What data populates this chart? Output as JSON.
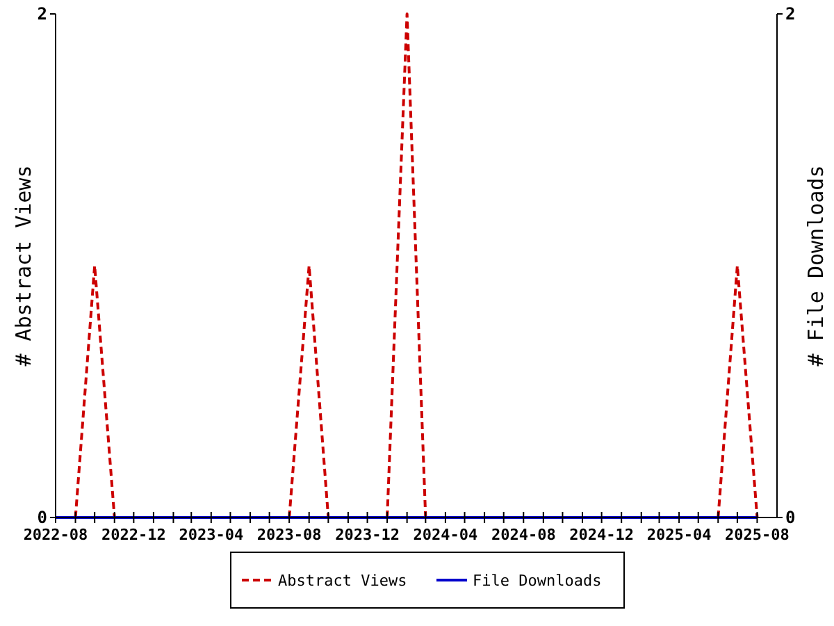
{
  "chart_data": {
    "type": "line",
    "ylabel": "# Abstract Views",
    "y2label": "# File Downloads",
    "x": [
      "2022-08",
      "2022-09",
      "2022-10",
      "2022-11",
      "2022-12",
      "2023-01",
      "2023-02",
      "2023-03",
      "2023-04",
      "2023-05",
      "2023-06",
      "2023-07",
      "2023-08",
      "2023-09",
      "2023-10",
      "2023-11",
      "2023-12",
      "2024-01",
      "2024-02",
      "2024-03",
      "2024-04",
      "2024-05",
      "2024-06",
      "2024-07",
      "2024-08",
      "2024-09",
      "2024-10",
      "2024-11",
      "2024-12",
      "2025-01",
      "2025-02",
      "2025-03",
      "2025-04",
      "2025-05",
      "2025-06",
      "2025-07",
      "2025-08"
    ],
    "series": [
      {
        "name": "Abstract Views",
        "color": "#cc0000",
        "line_style": "dashed",
        "values": [
          null,
          0,
          1,
          0,
          0,
          null,
          null,
          null,
          null,
          null,
          null,
          null,
          0,
          1,
          0,
          null,
          null,
          0,
          2,
          0,
          null,
          null,
          null,
          null,
          null,
          null,
          null,
          null,
          null,
          null,
          null,
          null,
          null,
          null,
          0,
          1,
          0
        ]
      },
      {
        "name": "File Downloads",
        "color": "#0000cc",
        "line_style": "solid",
        "axis": "y2",
        "values": [
          0,
          0,
          0,
          0,
          0,
          0,
          0,
          0,
          0,
          0,
          0,
          0,
          0,
          0,
          0,
          0,
          0,
          0,
          0,
          0,
          0,
          0,
          0,
          0,
          0,
          0,
          0,
          0,
          0,
          0,
          0,
          0,
          0,
          0,
          0,
          0,
          0
        ]
      }
    ],
    "xlim": [
      "2022-08",
      "2025-09"
    ],
    "xticks": [
      {
        "value": "2022-08",
        "label": "2022-08"
      },
      {
        "value": "2022-09",
        "label": null
      },
      {
        "value": "2022-10",
        "label": null
      },
      {
        "value": "2022-11",
        "label": null
      },
      {
        "value": "2022-12",
        "label": "2022-12"
      },
      {
        "value": "2023-01",
        "label": null
      },
      {
        "value": "2023-02",
        "label": null
      },
      {
        "value": "2023-03",
        "label": null
      },
      {
        "value": "2023-04",
        "label": "2023-04"
      },
      {
        "value": "2023-05",
        "label": null
      },
      {
        "value": "2023-06",
        "label": null
      },
      {
        "value": "2023-07",
        "label": null
      },
      {
        "value": "2023-08",
        "label": "2023-08"
      },
      {
        "value": "2023-09",
        "label": null
      },
      {
        "value": "2023-10",
        "label": null
      },
      {
        "value": "2023-11",
        "label": null
      },
      {
        "value": "2023-12",
        "label": "2023-12"
      },
      {
        "value": "2024-01",
        "label": null
      },
      {
        "value": "2024-02",
        "label": null
      },
      {
        "value": "2024-03",
        "label": null
      },
      {
        "value": "2024-04",
        "label": "2024-04"
      },
      {
        "value": "2024-05",
        "label": null
      },
      {
        "value": "2024-06",
        "label": null
      },
      {
        "value": "2024-07",
        "label": null
      },
      {
        "value": "2024-08",
        "label": "2024-08"
      },
      {
        "value": "2024-09",
        "label": null
      },
      {
        "value": "2024-10",
        "label": null
      },
      {
        "value": "2024-11",
        "label": null
      },
      {
        "value": "2024-12",
        "label": "2024-12"
      },
      {
        "value": "2025-01",
        "label": null
      },
      {
        "value": "2025-02",
        "label": null
      },
      {
        "value": "2025-03",
        "label": null
      },
      {
        "value": "2025-04",
        "label": "2025-04"
      },
      {
        "value": "2025-05",
        "label": null
      },
      {
        "value": "2025-06",
        "label": null
      },
      {
        "value": "2025-07",
        "label": null
      },
      {
        "value": "2025-08",
        "label": "2025-08"
      }
    ],
    "ylim": [
      0,
      2
    ],
    "yticks": [
      0,
      2
    ],
    "y2lim": [
      0,
      2
    ],
    "y2ticks": [
      0,
      2
    ],
    "grid": false,
    "legend": "bottom",
    "marker": "none"
  }
}
